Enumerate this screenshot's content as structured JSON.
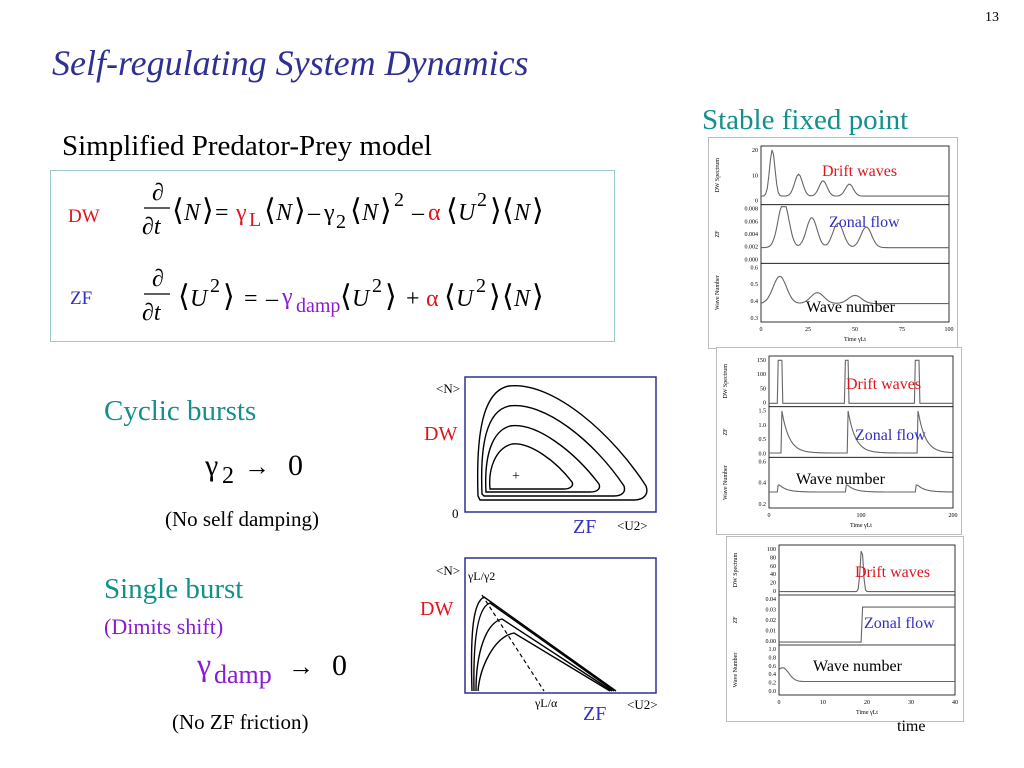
{
  "slide": {
    "page_number": "13",
    "title": "Self-regulating System Dynamics",
    "subtitle": "Simplified Predator-Prey model",
    "stable_label": "Stable fixed point"
  },
  "equations": {
    "dw_label": "DW",
    "zf_label": "ZF"
  },
  "cyclic": {
    "heading": "Cyclic bursts",
    "condition": "γ2 → 0",
    "note": "(No self damping)"
  },
  "single": {
    "heading": "Single burst",
    "subheading": "(Dimits shift)",
    "condition": "γdamp → 0",
    "note": "(No ZF friction)"
  },
  "phase_plot_1": {
    "y_label": "<N>",
    "dw": "DW",
    "zero": "0",
    "zf": "ZF",
    "x_label": "<U2>"
  },
  "phase_plot_2": {
    "y_label": "<N>",
    "dw": "DW",
    "zf": "ZF",
    "x_label": "<U2>",
    "ann_top": "γL/γ2",
    "ann_bottom": "γL/α"
  },
  "time_panels": [
    {
      "drift": "Drift waves",
      "zonal": "Zonal flow",
      "wave": "Wave number",
      "dw_axis": "DW Spectrum",
      "zf_axis": "ZF",
      "wn_axis": "Wave Number",
      "time_axis": "Time γLt",
      "x_ticks": [
        "0",
        "25",
        "50",
        "75",
        "100"
      ],
      "dw_ticks": [
        "20",
        "10",
        "0"
      ],
      "zf_ticks": [
        "0.008",
        "0.006",
        "0.004",
        "0.002",
        "0.000"
      ],
      "wn_ticks": [
        "0.6",
        "0.5",
        "0.4",
        "0.3"
      ]
    },
    {
      "drift": "Drift waves",
      "zonal": "Zonal flow",
      "wave": "Wave number",
      "dw_axis": "DW Spectrum",
      "zf_axis": "ZF",
      "wn_axis": "Wave Number",
      "time_axis": "Time γLt",
      "x_ticks": [
        "0",
        "100",
        "200"
      ],
      "dw_ticks": [
        "150",
        "100",
        "50",
        "0"
      ],
      "zf_ticks": [
        "1.5",
        "1.0",
        "0.5",
        "0.0"
      ],
      "wn_ticks": [
        "0.6",
        "0.4",
        "0.2"
      ]
    },
    {
      "drift": "Drift waves",
      "zonal": "Zonal flow",
      "wave": "Wave number",
      "dw_axis": "DW Spectrum",
      "zf_axis": "ZF",
      "wn_axis": "Wave Number",
      "time_axis": "Time γLt",
      "x_ticks": [
        "0",
        "10",
        "20",
        "30",
        "40"
      ],
      "dw_ticks": [
        "100",
        "80",
        "60",
        "40",
        "20",
        "0"
      ],
      "zf_ticks": [
        "0.04",
        "0.03",
        "0.02",
        "0.01",
        "0.00"
      ],
      "wn_ticks": [
        "1.0",
        "0.8",
        "0.6",
        "0.4",
        "0.2",
        "0.0"
      ]
    }
  ],
  "time_label": "time"
}
